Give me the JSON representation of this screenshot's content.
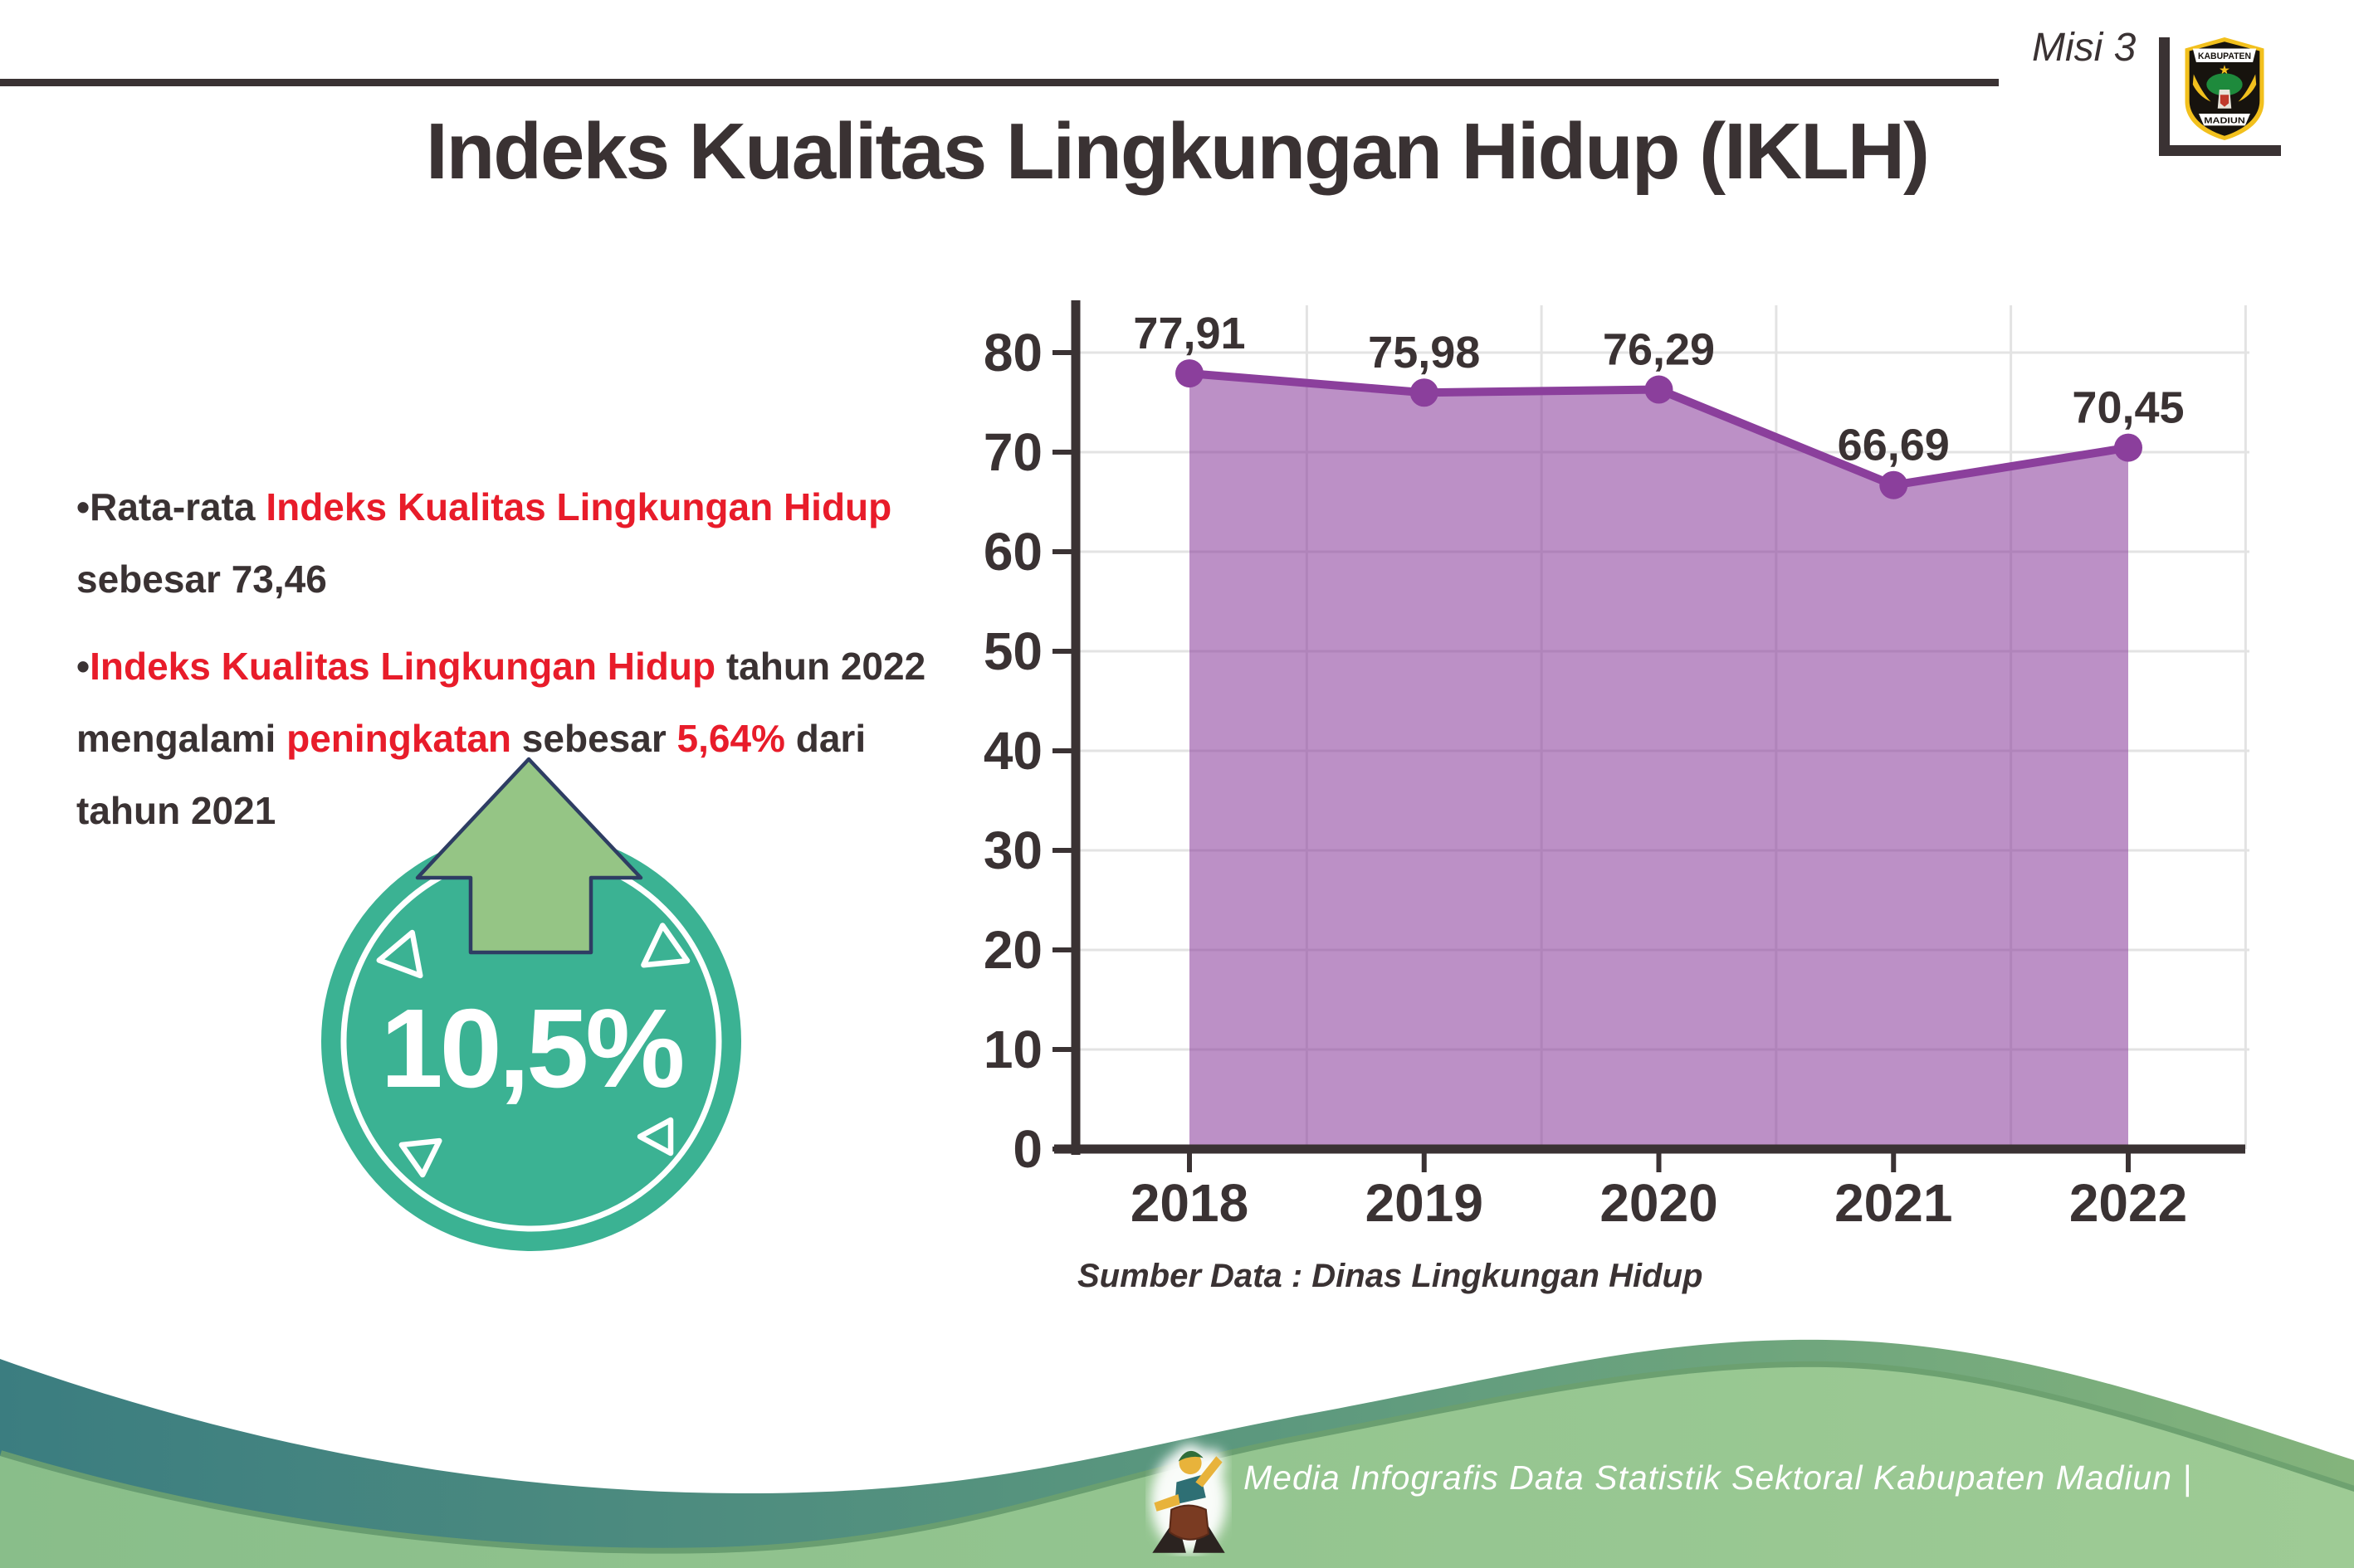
{
  "colors": {
    "text_dark": "#3a3233",
    "accent_red": "#e81c2a",
    "badge_teal": "#3bb293",
    "arrow_green": "#95c585",
    "arrow_outline": "#2e3d63",
    "wave_teal": "#3b7d80",
    "wave_green": "#93c48e",
    "purple_line": "#8b3f9c",
    "purple_fill": "#bc88c4",
    "grid_gray": "#e3e3e3"
  },
  "header": {
    "misi_label": "Misi 3",
    "title": "Indeks Kualitas Lingkungan Hidup (IKLH)",
    "logo": {
      "top_text": "KABUPATEN",
      "bottom_text": "MADIUN"
    }
  },
  "bullets": {
    "marker": "•",
    "b1": {
      "prefix": "Rata-rata ",
      "highlight": "Indeks Kualitas Lingkungan Hidup",
      "line2": "sebesar 73,46"
    },
    "b2": {
      "highlight1": "Indeks Kualitas Lingkungan Hidup",
      "seg1": " tahun 2022",
      "seg2": "mengalami ",
      "highlight2": "peningkatan",
      "seg3": " sebesar ",
      "highlight3": "5,64%",
      "seg4": " dari",
      "line3": "tahun 2021"
    }
  },
  "badge": {
    "value": "10,5%"
  },
  "chart_data": {
    "type": "area",
    "title": "",
    "categories": [
      "2018",
      "2019",
      "2020",
      "2021",
      "2022"
    ],
    "values": [
      77.91,
      75.98,
      76.29,
      66.69,
      70.45
    ],
    "value_labels": [
      "77,91",
      "75,98",
      "76,29",
      "66,69",
      "70,45"
    ],
    "y_ticks": [
      0,
      10,
      20,
      30,
      40,
      50,
      60,
      70,
      80
    ],
    "ylim": [
      0,
      85
    ],
    "grid": true,
    "legend": "none",
    "line_color": "#8b3f9c",
    "fill_color": "#bc88c4",
    "marker_color": "#8b3f9c",
    "source_note": "Sumber Data : Dinas Lingkungan Hidup"
  },
  "footer": {
    "credit": "Media Infografis Data Statistik Sektoral Kabupaten Madiun |"
  }
}
